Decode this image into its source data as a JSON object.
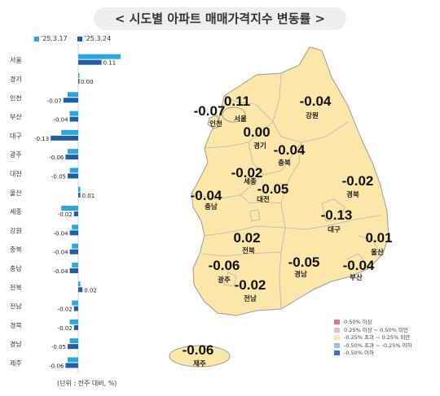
{
  "title": "< 시도별 아파트 매매가격지수 변동률 >",
  "legend": {
    "series1": "'25.3.17",
    "series2": "'25.3.24"
  },
  "unit_note": "(단위 : 전주 대비, %)",
  "colors": {
    "series1": "#29a8df",
    "series2": "#1f5fa6",
    "map_fill": "#fde7a8",
    "map_stroke": "#9a9a9a"
  },
  "chart_data": {
    "type": "bar",
    "orientation": "horizontal",
    "categories": [
      "서울",
      "경기",
      "인천",
      "부산",
      "대구",
      "광주",
      "대전",
      "울산",
      "세종",
      "강원",
      "충북",
      "충남",
      "전북",
      "전남",
      "경북",
      "경남",
      "제주"
    ],
    "series": [
      {
        "name": "'25.3.17",
        "values": [
          0.2,
          0.0,
          -0.05,
          -0.04,
          -0.08,
          -0.05,
          -0.04,
          0.01,
          -0.08,
          -0.03,
          -0.03,
          -0.03,
          0.01,
          -0.03,
          -0.04,
          -0.04,
          -0.05
        ]
      },
      {
        "name": "'25.3.24",
        "values": [
          0.11,
          0.0,
          -0.07,
          -0.04,
          -0.13,
          -0.06,
          -0.05,
          0.01,
          -0.02,
          -0.04,
          -0.04,
          -0.04,
          0.02,
          -0.02,
          -0.02,
          -0.05,
          -0.06
        ]
      }
    ],
    "data_labels": [
      "0.11",
      "0.00",
      "-0.07",
      "-0.04",
      "-0.13",
      "-0.06",
      "-0.05",
      "0.01",
      "-0.02",
      "-0.04",
      "-0.04",
      "-0.04",
      "0.02",
      "-0.02",
      "-0.02",
      "-0.05",
      "-0.06"
    ]
  },
  "map": {
    "regions": [
      {
        "name": "인천",
        "value": "-0.07"
      },
      {
        "name": "서울",
        "value": "0.11"
      },
      {
        "name": "경기",
        "value": "0.00"
      },
      {
        "name": "강원",
        "value": "-0.04"
      },
      {
        "name": "충북",
        "value": "-0.04"
      },
      {
        "name": "세종",
        "value": "-0.02"
      },
      {
        "name": "대전",
        "value": "-0.05"
      },
      {
        "name": "충남",
        "value": "-0.04"
      },
      {
        "name": "경북",
        "value": "-0.02"
      },
      {
        "name": "대구",
        "value": "-0.13"
      },
      {
        "name": "울산",
        "value": "0.01"
      },
      {
        "name": "전북",
        "value": "0.02"
      },
      {
        "name": "광주",
        "value": "-0.06"
      },
      {
        "name": "경남",
        "value": "-0.05"
      },
      {
        "name": "부산",
        "value": "-0.04"
      },
      {
        "name": "전남",
        "value": "-0.02"
      },
      {
        "name": "제주",
        "value": "-0.06"
      }
    ],
    "key": [
      {
        "label": "0.50% 이상",
        "color": "#e8747c"
      },
      {
        "label": "0.25% 이상 ~ 0.50% 미만",
        "color": "#f5b8bc"
      },
      {
        "label": "-0.25% 초과 ~ 0.25% 미만",
        "color": "#fde7a8"
      },
      {
        "label": "-0.50% 초과 ~ -0.25% 이하",
        "color": "#9cc3e6"
      },
      {
        "label": "-0.50% 이하",
        "color": "#4472c4"
      }
    ]
  }
}
